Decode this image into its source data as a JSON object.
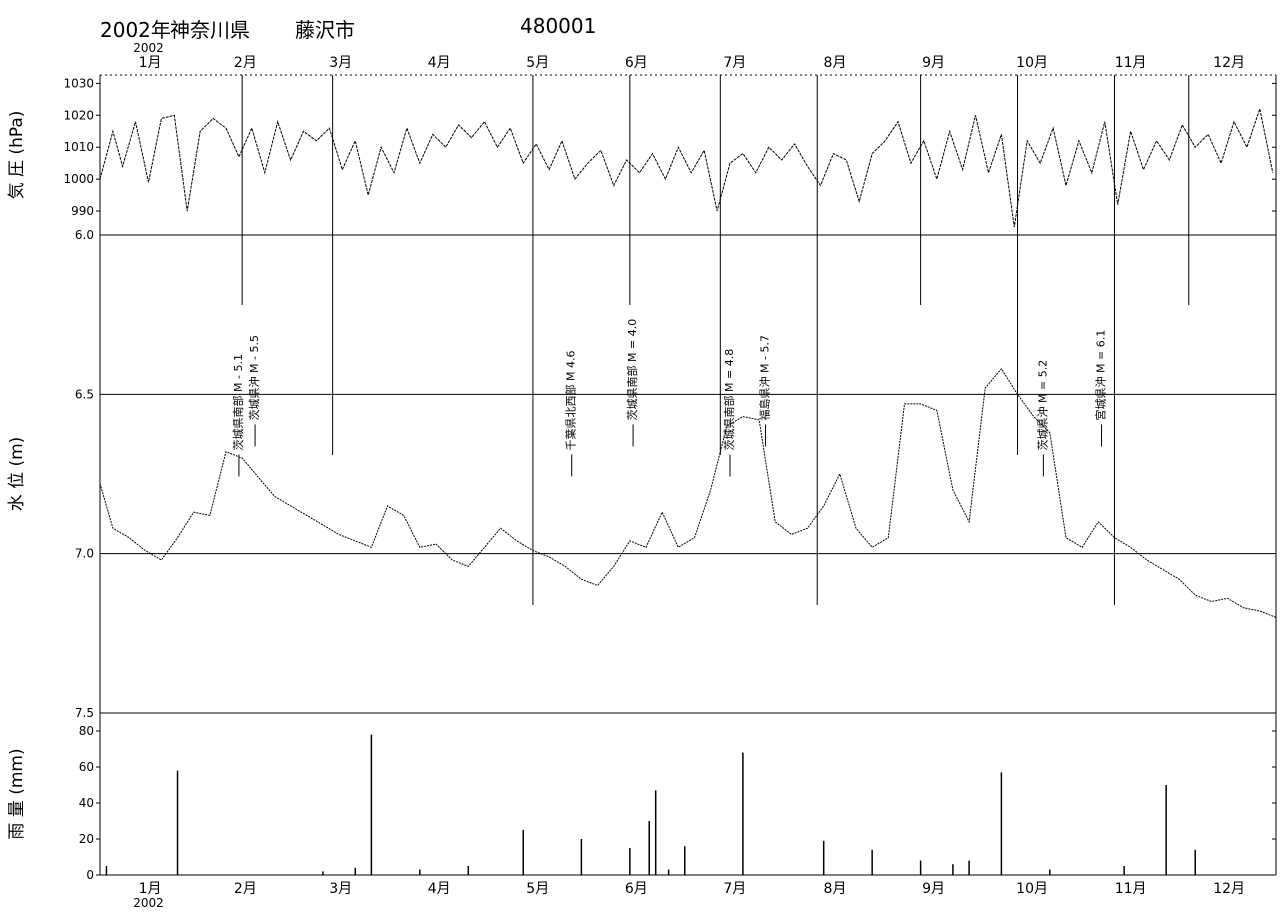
{
  "header": {
    "year_label": "2002年",
    "prefecture": "神奈川県",
    "city": "藤沢市",
    "station_id": "480001"
  },
  "chart_data": {
    "type": "line",
    "year_label": "2002",
    "months": [
      "1月",
      "2月",
      "3月",
      "4月",
      "5月",
      "6月",
      "7月",
      "8月",
      "9月",
      "10月",
      "11月",
      "12月"
    ],
    "panels": [
      {
        "name": "pressure",
        "ylabel": "気 圧 (hPa)",
        "yticks": [
          "1030",
          "1020",
          "1010",
          "1000",
          "990"
        ],
        "ylim": [
          985,
          1032
        ],
        "day_of_year": [
          1,
          5,
          8,
          12,
          16,
          20,
          24,
          28,
          32,
          36,
          40,
          44,
          48,
          52,
          56,
          60,
          64,
          68,
          72,
          76,
          80,
          84,
          88,
          92,
          96,
          100,
          104,
          108,
          112,
          116,
          120,
          124,
          128,
          132,
          136,
          140,
          144,
          148,
          152,
          156,
          160,
          164,
          168,
          172,
          176,
          180,
          184,
          188,
          192,
          196,
          200,
          204,
          208,
          212,
          216,
          220,
          224,
          228,
          232,
          236,
          240,
          244,
          248,
          252,
          256,
          260,
          264,
          268,
          272,
          276,
          280,
          284,
          288,
          292,
          296,
          300,
          304,
          308,
          312,
          316,
          320,
          324,
          328,
          332,
          336,
          340,
          344,
          348,
          352,
          356,
          360,
          364
        ],
        "values": [
          1000,
          1015,
          1004,
          1018,
          999,
          1019,
          1020,
          990,
          1015,
          1019,
          1016,
          1007,
          1016,
          1002,
          1018,
          1006,
          1015,
          1012,
          1016,
          1003,
          1012,
          995,
          1010,
          1002,
          1016,
          1005,
          1014,
          1010,
          1017,
          1013,
          1018,
          1010,
          1016,
          1005,
          1011,
          1003,
          1012,
          1000,
          1005,
          1009,
          998,
          1006,
          1002,
          1008,
          1000,
          1010,
          1002,
          1009,
          990,
          1005,
          1008,
          1002,
          1010,
          1006,
          1011,
          1004,
          998,
          1008,
          1006,
          993,
          1008,
          1012,
          1018,
          1005,
          1012,
          1000,
          1015,
          1003,
          1020,
          1002,
          1014,
          985,
          1012,
          1005,
          1016,
          998,
          1012,
          1002,
          1018,
          992,
          1015,
          1003,
          1012,
          1006,
          1017,
          1010,
          1014,
          1005,
          1018,
          1010,
          1022,
          1002
        ],
        "color": "#000000"
      },
      {
        "name": "water_level",
        "ylabel": "水 位 (m)",
        "yticks": [
          "6.0",
          "6.5",
          "7.0",
          "7.5"
        ],
        "ylim": [
          7.5,
          6.0
        ],
        "day_of_year": [
          1,
          5,
          10,
          15,
          20,
          25,
          30,
          35,
          40,
          45,
          50,
          55,
          60,
          65,
          70,
          75,
          80,
          85,
          90,
          95,
          100,
          105,
          110,
          115,
          120,
          125,
          130,
          135,
          140,
          145,
          150,
          155,
          160,
          165,
          170,
          175,
          180,
          185,
          190,
          195,
          200,
          205,
          210,
          215,
          220,
          225,
          230,
          235,
          240,
          245,
          250,
          255,
          260,
          265,
          270,
          275,
          280,
          285,
          290,
          295,
          300,
          305,
          310,
          315,
          320,
          325,
          330,
          335,
          340,
          345,
          350,
          355,
          360,
          365
        ],
        "values": [
          6.78,
          6.92,
          6.95,
          6.99,
          7.02,
          6.95,
          6.87,
          6.88,
          6.68,
          6.7,
          6.76,
          6.82,
          6.85,
          6.88,
          6.91,
          6.94,
          6.96,
          6.98,
          6.85,
          6.88,
          6.98,
          6.97,
          7.02,
          7.04,
          6.98,
          6.92,
          6.96,
          6.99,
          7.01,
          7.04,
          7.08,
          7.1,
          7.04,
          6.96,
          6.98,
          6.87,
          6.98,
          6.95,
          6.8,
          6.6,
          6.57,
          6.58,
          6.9,
          6.94,
          6.92,
          6.85,
          6.75,
          6.92,
          6.98,
          6.95,
          6.53,
          6.53,
          6.55,
          6.8,
          6.9,
          6.48,
          6.42,
          6.5,
          6.57,
          6.62,
          6.95,
          6.98,
          6.9,
          6.95,
          6.98,
          7.02,
          7.05,
          7.08,
          7.13,
          7.15,
          7.14,
          7.17,
          7.18,
          7.2
        ],
        "reference_level": 7.0,
        "color": "#000000"
      },
      {
        "name": "rainfall",
        "ylabel": "雨 量 (mm)",
        "yticks": [
          "80",
          "60",
          "40",
          "20",
          "0"
        ],
        "ylim": [
          0,
          90
        ],
        "day_of_year": [
          3,
          25,
          70,
          80,
          85,
          100,
          115,
          132,
          150,
          165,
          171,
          173,
          177,
          182,
          200,
          225,
          240,
          255,
          265,
          270,
          280,
          295,
          318,
          331,
          340
        ],
        "values": [
          5,
          58,
          2,
          4,
          78,
          3,
          5,
          25,
          20,
          15,
          30,
          47,
          3,
          16,
          68,
          19,
          14,
          8,
          6,
          8,
          57,
          3,
          5,
          50,
          14
        ],
        "color": "#000000"
      }
    ],
    "earthquakes": [
      {
        "label": "茨城県南部 M - 5.1",
        "day_of_year": 44
      },
      {
        "label": "茨城県沖 M - 5.5",
        "day_of_year": 49
      },
      {
        "label": "千葉県北西部 M 4.6",
        "day_of_year": 147
      },
      {
        "label": "茨城県南部 M = 4.0",
        "day_of_year": 166
      },
      {
        "label": "茨城県南部 M = 4.8",
        "day_of_year": 196
      },
      {
        "label": "福島県沖 M - 5.7",
        "day_of_year": 207
      },
      {
        "label": "茨城県沖 M = 5.2",
        "day_of_year": 293
      },
      {
        "label": "宮城県沖 M = 6.1",
        "day_of_year": 311
      }
    ]
  }
}
